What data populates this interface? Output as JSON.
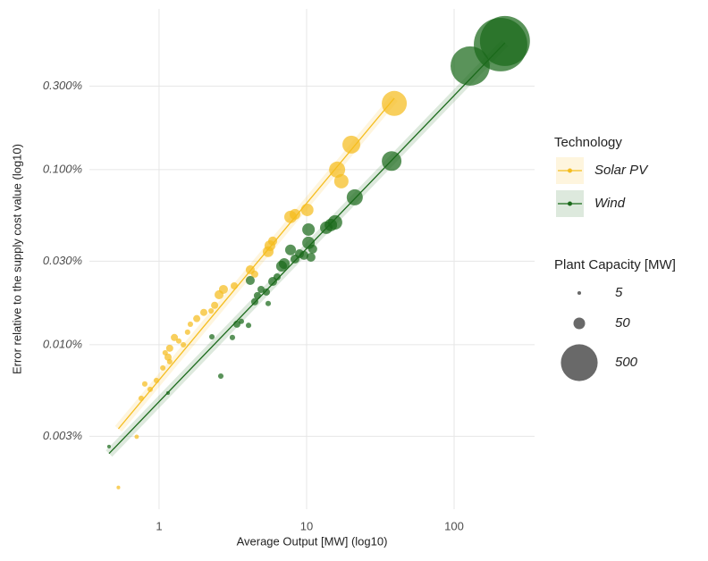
{
  "chart_data": {
    "type": "scatter",
    "x_label": "Average Output [MW] (log10)",
    "y_label": "Error relative to the supply cost value (log10)",
    "xlog": true,
    "ylog": true,
    "grid": true,
    "xlim": [
      0.337,
      351
    ],
    "ylim": [
      0.00115,
      0.828
    ],
    "xticks": [
      1,
      10,
      100
    ],
    "yticks": [
      {
        "value": 0.003,
        "label": "0.003%"
      },
      {
        "value": 0.01,
        "label": "0.010%"
      },
      {
        "value": 0.03,
        "label": "0.030%"
      },
      {
        "value": 0.1,
        "label": "0.100%"
      },
      {
        "value": 0.3,
        "label": "0.300%"
      }
    ],
    "legend_title": "Technology",
    "legend_position": "right",
    "size_legend": {
      "title": "Plant Capacity [MW]",
      "values": [
        5,
        50,
        500
      ]
    },
    "series": [
      {
        "name": "Solar PV",
        "color": "#f5bd1f",
        "x": [
          0.53,
          0.705,
          0.757,
          0.8,
          0.87,
          0.96,
          1.06,
          1.15,
          1.18,
          1.18,
          1.36,
          1.46,
          1.56,
          1.63,
          1.8,
          2.01,
          2.25,
          2.38,
          2.55,
          2.73,
          3.23,
          4.15,
          4.45,
          5.49,
          5.64,
          5.89,
          7.78,
          8.34,
          10.1,
          16.1,
          17.2,
          20.1,
          39.3,
          1.27,
          1.1
        ],
        "values": [
          0.00153,
          0.00298,
          0.00494,
          0.00597,
          0.00556,
          0.00625,
          0.00737,
          0.0085,
          0.00955,
          0.008,
          0.0105,
          0.01,
          0.0118,
          0.0131,
          0.0141,
          0.0153,
          0.0156,
          0.0168,
          0.0193,
          0.0207,
          0.0217,
          0.0268,
          0.0253,
          0.034,
          0.0368,
          0.0391,
          0.0537,
          0.0556,
          0.0589,
          0.1,
          0.0859,
          0.139,
          0.239,
          0.011,
          0.009
        ],
        "sizes": [
          5,
          7,
          11,
          11,
          11,
          11,
          11,
          19,
          19,
          11,
          11,
          11,
          11,
          11,
          19,
          19,
          11,
          19,
          30,
          30,
          19,
          30,
          19,
          43,
          43,
          30,
          58,
          43,
          58,
          96,
          76,
          118,
          232,
          19,
          11
        ],
        "fit": {
          "x": [
            0.53,
            39.3
          ],
          "values": [
            0.00331,
            0.256
          ]
        }
      },
      {
        "name": "Wind",
        "color": "#1b6a1b",
        "x": [
          0.458,
          1.15,
          2.28,
          2.62,
          3.14,
          3.37,
          3.61,
          4.15,
          4.45,
          4.64,
          4.91,
          5.34,
          5.49,
          5.89,
          6.31,
          6.76,
          7.05,
          7.78,
          8.34,
          8.95,
          9.59,
          10.3,
          10.3,
          10.7,
          11.0,
          13.6,
          14.6,
          15.6,
          21.2,
          37.7,
          128.5,
          206.5,
          221,
          4.04
        ],
        "values": [
          0.00262,
          0.0053,
          0.0111,
          0.00662,
          0.011,
          0.0131,
          0.0136,
          0.0233,
          0.0176,
          0.0191,
          0.0207,
          0.02,
          0.0172,
          0.023,
          0.0244,
          0.0281,
          0.0291,
          0.0348,
          0.0309,
          0.0331,
          0.0324,
          0.0382,
          0.0455,
          0.0316,
          0.0352,
          0.0466,
          0.0483,
          0.05,
          0.0695,
          0.112,
          0.391,
          0.518,
          0.543,
          0.0129
        ],
        "sizes": [
          5,
          5,
          11,
          11,
          11,
          19,
          11,
          30,
          19,
          19,
          19,
          19,
          11,
          30,
          19,
          43,
          43,
          43,
          30,
          30,
          30,
          58,
          58,
          30,
          30,
          58,
          58,
          76,
          96,
          143,
          570,
          1060,
          925,
          11
        ],
        "fit": {
          "x": [
            0.458,
            221
          ],
          "values": [
            0.00239,
            0.53
          ]
        }
      }
    ]
  }
}
